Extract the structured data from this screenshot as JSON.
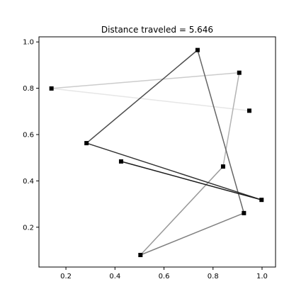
{
  "chart_data": {
    "type": "line",
    "title": "Distance traveled = 5.646",
    "xlabel": "",
    "ylabel": "",
    "xlim": [
      0.09,
      1.055
    ],
    "ylim": [
      0.028,
      1.022
    ],
    "xticks": [
      0.2,
      0.4,
      0.6,
      0.8,
      1.0
    ],
    "xtick_labels": [
      "0.2",
      "0.4",
      "0.6",
      "0.8",
      "1.0"
    ],
    "yticks": [
      0.2,
      0.4,
      0.6,
      0.8,
      1.0
    ],
    "ytick_labels": [
      "0.2",
      "0.4",
      "0.6",
      "0.8",
      "1.0"
    ],
    "grid": false,
    "marker": "square",
    "marker_color": "#000000",
    "points": [
      {
        "x": 0.948,
        "y": 0.703
      },
      {
        "x": 0.141,
        "y": 0.799
      },
      {
        "x": 0.907,
        "y": 0.867
      },
      {
        "x": 0.841,
        "y": 0.462
      },
      {
        "x": 0.504,
        "y": 0.08
      },
      {
        "x": 0.926,
        "y": 0.261
      },
      {
        "x": 0.737,
        "y": 0.965
      },
      {
        "x": 0.284,
        "y": 0.563
      },
      {
        "x": 0.998,
        "y": 0.318
      },
      {
        "x": 0.425,
        "y": 0.484
      }
    ],
    "path_segment_colors": [
      "#e6e6e6",
      "#cccccc",
      "#b3b3b3",
      "#999999",
      "#808080",
      "#666666",
      "#4d4d4d",
      "#333333",
      "#1a1a1a"
    ]
  }
}
